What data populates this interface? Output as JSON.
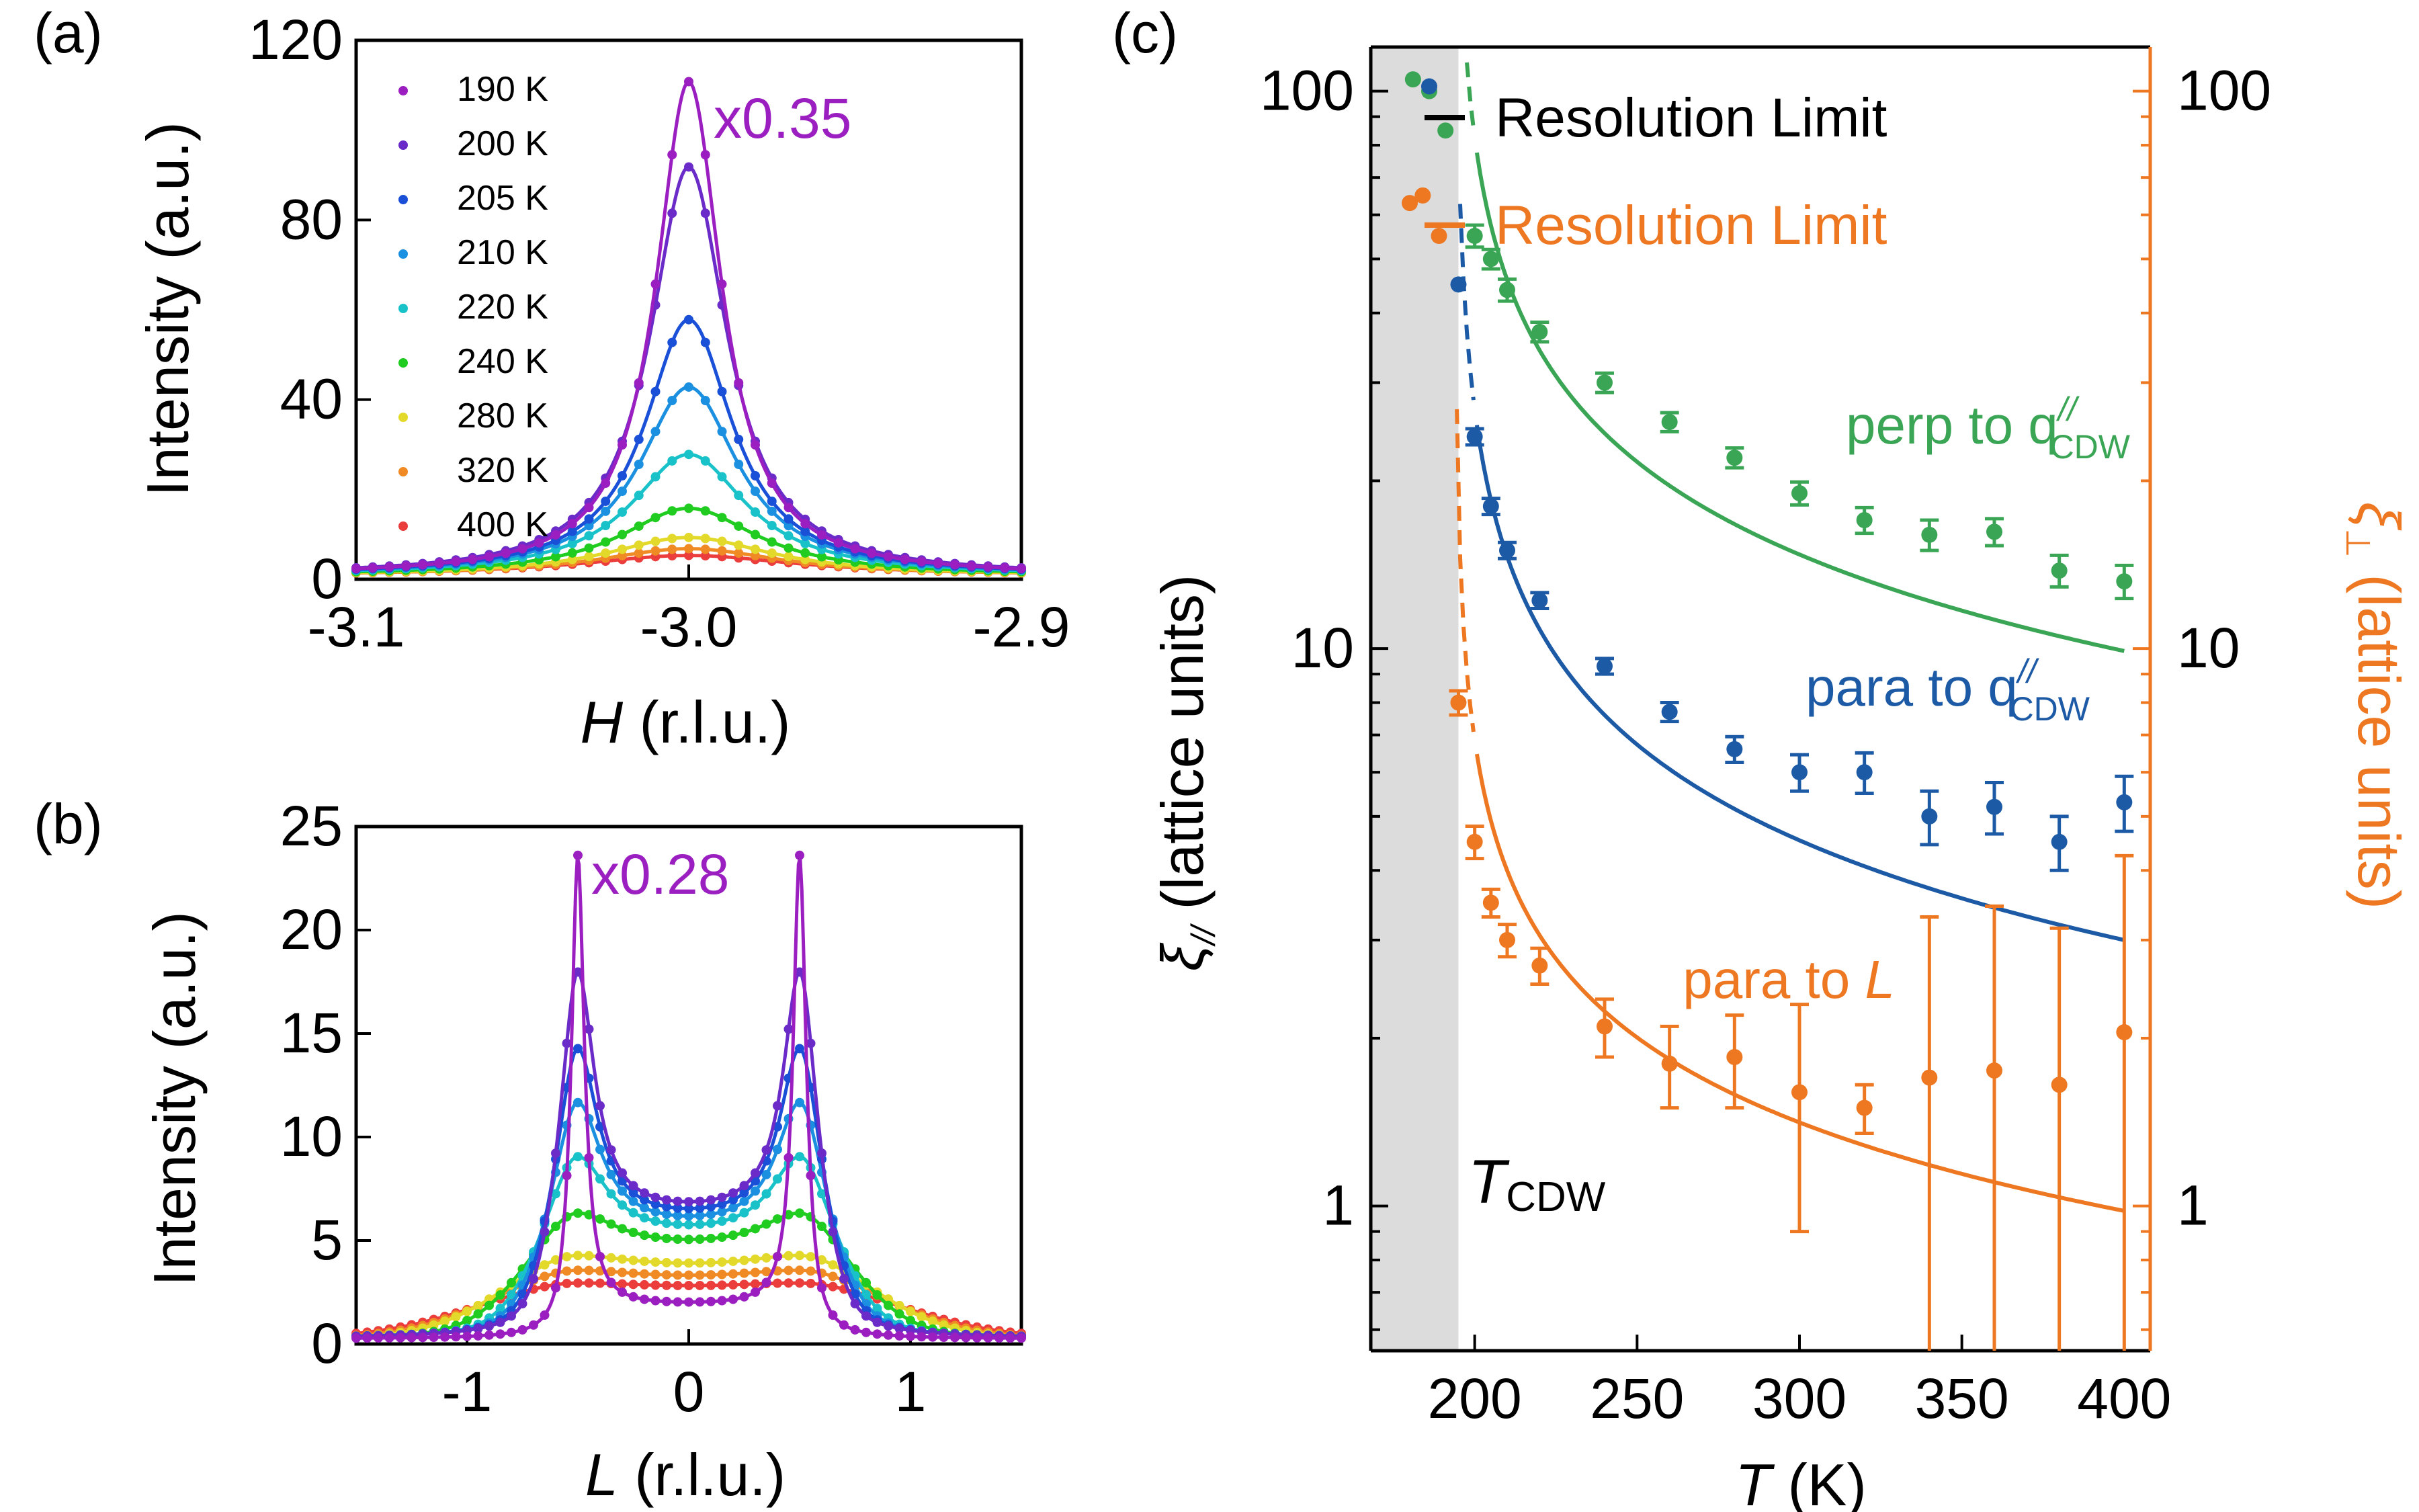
{
  "panels": {
    "a": {
      "label": "(a)",
      "type": "line",
      "xlabel_italic": "H",
      "xlabel_rest": " (r.l.u.)",
      "ylabel": "Intensity (a.u.)",
      "xlim": [
        -3.1,
        -2.9
      ],
      "ylim": [
        0,
        120
      ],
      "xticks": [
        {
          "v": -3.1,
          "t": "-3.1"
        },
        {
          "v": -3.0,
          "t": "-3.0"
        },
        {
          "v": -2.9,
          "t": "-2.9"
        }
      ],
      "yticks": [
        {
          "v": 0,
          "t": "0"
        },
        {
          "v": 40,
          "t": "40"
        },
        {
          "v": 80,
          "t": "80"
        },
        {
          "v": 120,
          "t": "120"
        }
      ],
      "annotation": "x0.35",
      "center": -3.0,
      "baseline": 0.8,
      "series": [
        {
          "name": "190 K",
          "color": "#9b1fc0",
          "peak": 110,
          "width": 0.012
        },
        {
          "name": "200 K",
          "color": "#6a2bc8",
          "peak": 91,
          "width": 0.014
        },
        {
          "name": "205 K",
          "color": "#1a4fd8",
          "peak": 57,
          "width": 0.016
        },
        {
          "name": "210 K",
          "color": "#1b8fe0",
          "peak": 42,
          "width": 0.018
        },
        {
          "name": "220 K",
          "color": "#19c2c9",
          "peak": 27,
          "width": 0.021
        },
        {
          "name": "240 K",
          "color": "#1fcc1f",
          "peak": 15,
          "width": 0.025
        },
        {
          "name": "280 K",
          "color": "#e3d92a",
          "peak": 8.5,
          "width": 0.03
        },
        {
          "name": "320 K",
          "color": "#f08a24",
          "peak": 6,
          "width": 0.034
        },
        {
          "name": "400 K",
          "color": "#ec3d3d",
          "peak": 4.5,
          "width": 0.04
        }
      ]
    },
    "b": {
      "label": "(b)",
      "type": "line",
      "xlabel_italic": "L",
      "xlabel_rest": " (r.l.u.)",
      "ylabel": "Intensity (a.u.)",
      "xlim": [
        -1.5,
        1.5
      ],
      "ylim": [
        0,
        25
      ],
      "xticks": [
        {
          "v": -1,
          "t": "-1"
        },
        {
          "v": 0,
          "t": "0"
        },
        {
          "v": 1,
          "t": "1"
        }
      ],
      "yticks": [
        {
          "v": 0,
          "t": "0"
        },
        {
          "v": 5,
          "t": "5"
        },
        {
          "v": 10,
          "t": "10"
        },
        {
          "v": 15,
          "t": "15"
        },
        {
          "v": 20,
          "t": "20"
        },
        {
          "v": 25,
          "t": "25"
        }
      ],
      "annotation": "x0.28",
      "series": [
        {
          "name": "190 K",
          "color": "#9b1fc0",
          "peak": 23.3,
          "width": 0.035,
          "plateau": 1.7
        },
        {
          "name": "200 K",
          "color": "#6a2bc8",
          "peak": 17.5,
          "width": 0.09,
          "plateau": 6.4
        },
        {
          "name": "205 K",
          "color": "#1a4fd8",
          "peak": 13.8,
          "width": 0.11,
          "plateau": 6.0
        },
        {
          "name": "210 K",
          "color": "#1b8fe0",
          "peak": 11.2,
          "width": 0.13,
          "plateau": 5.6
        },
        {
          "name": "220 K",
          "color": "#19c2c9",
          "peak": 8.6,
          "width": 0.16,
          "plateau": 5.2
        },
        {
          "name": "240 K",
          "color": "#1fcc1f",
          "peak": 5.9,
          "width": 0.22,
          "plateau": 4.6
        },
        {
          "name": "280 K",
          "color": "#e3d92a",
          "peak": 3.9,
          "width": 0.3,
          "plateau": 3.6
        },
        {
          "name": "320 K",
          "color": "#f08a24",
          "peak": 3.2,
          "width": 0.34,
          "plateau": 3.0
        },
        {
          "name": "400 K",
          "color": "#ec3d3d",
          "peak": 2.6,
          "width": 0.4,
          "plateau": 2.5
        }
      ]
    },
    "c": {
      "label": "(c)",
      "type": "scatter",
      "xlabel_italic": "T",
      "xlabel_rest": " (K)",
      "ylabel_left": "(lattice units)",
      "ylabel_left_symbol": "ξ",
      "ylabel_left_sub": "//",
      "ylabel_right": "(lattice units)",
      "ylabel_right_symbol": "ξ",
      "ylabel_right_sub": "⊥",
      "xlim": [
        168,
        408
      ],
      "ylim": [
        0.55,
        120
      ],
      "yscale": "log",
      "xticks": [
        {
          "v": 200,
          "t": "200"
        },
        {
          "v": 250,
          "t": "250"
        },
        {
          "v": 300,
          "t": "300"
        },
        {
          "v": 350,
          "t": "350"
        },
        {
          "v": 400,
          "t": "400"
        }
      ],
      "yticks": [
        {
          "v": 1,
          "t": "1"
        },
        {
          "v": 10,
          "t": "10"
        },
        {
          "v": 100,
          "t": "100"
        }
      ],
      "shade_range": [
        168,
        195
      ],
      "tcdw_italic": "T",
      "tcdw_sub": "CDW",
      "legend": [
        {
          "text": "Resolution Limit",
          "color": "#000000"
        },
        {
          "text": "Resolution Limit",
          "color": "#ee7722"
        }
      ],
      "series": [
        {
          "name": "perp",
          "color": "#3aa655",
          "label_text": "perp to q",
          "label_sup": "//",
          "label_sub": "CDW",
          "points": [
            [
              181,
              105
            ],
            [
              186,
              100
            ],
            [
              191,
              85
            ],
            [
              200,
              55
            ],
            [
              205,
              50
            ],
            [
              210,
              44
            ],
            [
              220,
              37
            ],
            [
              240,
              30
            ],
            [
              260,
              25.5
            ],
            [
              280,
              22
            ],
            [
              300,
              19
            ],
            [
              320,
              17
            ],
            [
              340,
              16
            ],
            [
              360,
              16.2
            ],
            [
              380,
              13.8
            ],
            [
              400,
              13.2
            ]
          ],
          "errors": [
            0,
            0,
            0,
            2.5,
            2,
            2,
            1.5,
            1.2,
            1,
            0.9,
            0.9,
            0.9,
            1,
            0.9,
            0.9,
            0.9
          ],
          "fit": {
            "A": 15.5,
            "n": 0.6,
            "base": 9.9
          }
        },
        {
          "name": "para",
          "color": "#1d5aa6",
          "label_text": "para to q",
          "label_sup": "//",
          "label_sub": "CDW",
          "points": [
            [
              186,
              102
            ],
            [
              195,
              45
            ],
            [
              200,
              24
            ],
            [
              205,
              18
            ],
            [
              210,
              15
            ],
            [
              220,
              12.2
            ],
            [
              240,
              9.3
            ],
            [
              260,
              7.7
            ],
            [
              280,
              6.6
            ],
            [
              300,
              6.0
            ],
            [
              320,
              6.0
            ],
            [
              340,
              5.0
            ],
            [
              360,
              5.2
            ],
            [
              380,
              4.5
            ],
            [
              400,
              5.3
            ]
          ],
          "errors": [
            0,
            0,
            0.8,
            0.6,
            0.5,
            0.4,
            0.3,
            0.3,
            0.35,
            0.45,
            0.5,
            0.55,
            0.55,
            0.5,
            0.6
          ],
          "fit": {
            "A": 3.85,
            "n": 0.62,
            "base": 3.0
          }
        },
        {
          "name": "paraL",
          "color": "#ee7722",
          "label_text": "para to ",
          "label_italic": "L",
          "points": [
            [
              180,
              63
            ],
            [
              184,
              65
            ],
            [
              189,
              55
            ],
            [
              195,
              8
            ],
            [
              200,
              4.5
            ],
            [
              205,
              3.5
            ],
            [
              210,
              3.0
            ],
            [
              220,
              2.7
            ],
            [
              240,
              2.1
            ],
            [
              260,
              1.8
            ],
            [
              280,
              1.85
            ],
            [
              300,
              1.6
            ],
            [
              320,
              1.5
            ],
            [
              340,
              1.7
            ],
            [
              360,
              1.75
            ],
            [
              380,
              1.65
            ],
            [
              400,
              2.05
            ]
          ],
          "errors": [
            0,
            0,
            0,
            0.4,
            0.3,
            0.2,
            0.2,
            0.2,
            0.25,
            0.3,
            0.35,
            0.7,
            0.15,
            1.6,
            1.7,
            1.5,
            2.2
          ],
          "fit": {
            "A": 0.62,
            "n": 0.55,
            "base": 0.98
          }
        }
      ]
    }
  }
}
